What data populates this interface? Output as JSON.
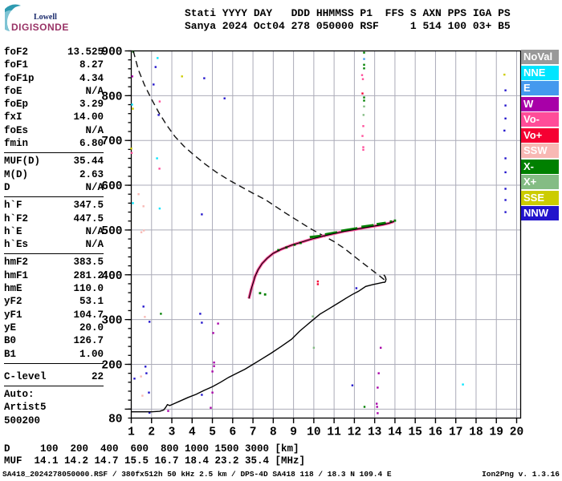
{
  "header": {
    "logo": {
      "top": "Lowell",
      "bottom": "DIGISONDE"
    },
    "line1": "Stati YYYY DAY   DDD HHMMSS P1  FFS S AXN PPS IGA PS",
    "line2": "Sanya 2024 Oct04 278 050000 RSF     1 514 100 03+ B5"
  },
  "param_panel": {
    "groups": [
      {
        "rows": [
          [
            "foF2",
            "13.525"
          ],
          [
            "foF1",
            "8.27"
          ],
          [
            "foF1p",
            "4.34"
          ],
          [
            "foE",
            "N/A"
          ],
          [
            "foEp",
            "3.29"
          ],
          [
            "fxI",
            "14.00"
          ],
          [
            "foEs",
            "N/A"
          ],
          [
            "fmin",
            "6.80"
          ]
        ]
      },
      {
        "rows": [
          [
            "MUF(D)",
            "35.44"
          ],
          [
            "M(D)",
            "2.63"
          ],
          [
            "D",
            "N/A"
          ]
        ]
      },
      {
        "rows": [
          [
            "h`F",
            "347.5"
          ],
          [
            "h`F2",
            "447.5"
          ],
          [
            "h`E",
            "N/A"
          ],
          [
            "h`Es",
            "N/A"
          ]
        ]
      },
      {
        "rows": [
          [
            "hmF2",
            "383.5"
          ],
          [
            "hmF1",
            "281.2"
          ],
          [
            "hmE",
            "110.0"
          ],
          [
            "yF2",
            "53.1"
          ],
          [
            "yF1",
            "104.7"
          ],
          [
            "yE",
            "20.0"
          ],
          [
            "B0",
            "126.7"
          ],
          [
            "B1",
            "1.00"
          ]
        ]
      },
      {
        "gap": true,
        "rows": [
          [
            "C-level",
            "22"
          ]
        ]
      },
      {
        "plain": [
          "Auto:",
          "Artist5",
          "500200"
        ]
      }
    ]
  },
  "legend": {
    "items": [
      {
        "label": "NoVal",
        "color": "#999999"
      },
      {
        "label": "NNE",
        "color": "#00E5FF"
      },
      {
        "label": "E",
        "color": "#4499EE"
      },
      {
        "label": "W",
        "color": "#A800A8"
      },
      {
        "label": "Vo-",
        "color": "#FF4D99"
      },
      {
        "label": "Vo+",
        "color": "#F50032"
      },
      {
        "label": "SSW",
        "color": "#F8B8B4"
      },
      {
        "label": "X-",
        "color": "#008000"
      },
      {
        "label": "X+",
        "color": "#84BC84"
      },
      {
        "label": "SSE",
        "color": "#CCCC00"
      },
      {
        "label": "NNW",
        "color": "#2214CC"
      }
    ]
  },
  "chart_data": {
    "type": "scatter",
    "title": "",
    "xlabel": "",
    "ylabel": "",
    "xlim": [
      1,
      20
    ],
    "ylim": [
      80,
      900
    ],
    "x_ticks": [
      1,
      2,
      3,
      4,
      5,
      6,
      7,
      8,
      9,
      10,
      11,
      12,
      13,
      14,
      15,
      16,
      17,
      18,
      19,
      20
    ],
    "y_major_ticks": [
      100,
      200,
      300,
      400,
      500,
      600,
      700,
      800,
      900
    ],
    "y_labeled_ticks": [
      900,
      800,
      700,
      600,
      500,
      400,
      300,
      200,
      80
    ],
    "y_minor_step": 20,
    "grid": true,
    "muf_table": {
      "D_km": [
        100,
        200,
        400,
        600,
        800,
        1000,
        1500,
        3000
      ],
      "MUF_MHz": [
        14.1,
        14.2,
        14.7,
        15.5,
        16.7,
        18.4,
        23.2,
        35.4
      ]
    },
    "series": {
      "o_trace": [
        [
          6.8,
          347
        ],
        [
          6.85,
          356
        ],
        [
          6.9,
          366
        ],
        [
          7.0,
          381
        ],
        [
          7.1,
          396
        ],
        [
          7.25,
          411
        ],
        [
          7.45,
          425
        ],
        [
          7.7,
          437
        ],
        [
          8.0,
          448
        ],
        [
          8.4,
          457
        ],
        [
          8.9,
          466
        ],
        [
          9.4,
          473
        ],
        [
          9.9,
          480
        ],
        [
          10.5,
          487
        ],
        [
          11.0,
          492
        ],
        [
          11.5,
          497
        ],
        [
          12.0,
          501
        ],
        [
          12.5,
          505
        ],
        [
          13.0,
          509
        ],
        [
          13.4,
          512
        ],
        [
          13.7,
          515
        ],
        [
          13.95,
          519
        ]
      ],
      "x_trace_segments": [
        [
          [
            9.8,
            484
          ],
          [
            10.35,
            487
          ]
        ],
        [
          [
            10.55,
            490
          ],
          [
            11.15,
            495
          ]
        ],
        [
          [
            11.35,
            498
          ],
          [
            12.15,
            504
          ]
        ],
        [
          [
            12.35,
            507
          ],
          [
            12.95,
            511
          ]
        ],
        [
          [
            13.1,
            513
          ],
          [
            13.55,
            516
          ]
        ]
      ],
      "x_trace_dots": [
        [
          8.25,
          455
        ],
        [
          8.65,
          461
        ],
        [
          9.05,
          467
        ],
        [
          9.35,
          471
        ],
        [
          13.8,
          519
        ],
        [
          14.0,
          521
        ],
        [
          7.35,
          359
        ],
        [
          7.6,
          356
        ]
      ],
      "profile": [
        [
          1.0,
          94
        ],
        [
          1.5,
          94
        ],
        [
          2.0,
          94
        ],
        [
          2.4,
          95
        ],
        [
          2.6,
          98
        ],
        [
          2.7,
          104
        ],
        [
          2.78,
          110
        ],
        [
          2.9,
          108
        ],
        [
          3.1,
          112
        ],
        [
          3.4,
          118
        ],
        [
          3.8,
          126
        ],
        [
          4.2,
          133
        ],
        [
          4.6,
          142
        ],
        [
          5.0,
          150
        ],
        [
          5.4,
          160
        ],
        [
          5.8,
          171
        ],
        [
          6.2,
          180
        ],
        [
          6.6,
          189
        ],
        [
          7.0,
          200
        ],
        [
          7.4,
          211
        ],
        [
          7.9,
          225
        ],
        [
          8.4,
          240
        ],
        [
          8.9,
          256
        ],
        [
          9.3,
          274
        ],
        [
          9.9,
          297
        ],
        [
          10.3,
          312
        ],
        [
          10.7,
          323
        ],
        [
          11.25,
          338
        ],
        [
          11.6,
          348
        ],
        [
          11.9,
          356
        ],
        [
          12.2,
          363
        ],
        [
          12.56,
          374
        ],
        [
          12.9,
          378
        ],
        [
          13.2,
          381
        ],
        [
          13.4,
          383
        ],
        [
          13.525,
          383.5
        ]
      ],
      "profile_hook": [
        [
          13.525,
          383.5
        ],
        [
          13.56,
          390
        ],
        [
          13.52,
          396
        ],
        [
          13.45,
          400
        ]
      ],
      "transmission_curve": [
        [
          1.1,
          900
        ],
        [
          1.35,
          858
        ],
        [
          1.65,
          824
        ],
        [
          2.0,
          792
        ],
        [
          2.35,
          763
        ],
        [
          2.75,
          734
        ],
        [
          3.15,
          709
        ],
        [
          3.6,
          687
        ],
        [
          4.1,
          667
        ],
        [
          4.65,
          647
        ],
        [
          5.2,
          629
        ],
        [
          5.8,
          612
        ],
        [
          6.4,
          597
        ],
        [
          7.0,
          582
        ],
        [
          7.6,
          568
        ],
        [
          8.1,
          553
        ],
        [
          8.6,
          538
        ],
        [
          9.2,
          521
        ],
        [
          9.8,
          504
        ],
        [
          10.4,
          489
        ],
        [
          11.0,
          474
        ],
        [
          11.5,
          459
        ],
        [
          12.0,
          441
        ],
        [
          12.45,
          425
        ],
        [
          12.85,
          411
        ],
        [
          13.2,
          399
        ],
        [
          13.45,
          390
        ],
        [
          13.53,
          384
        ]
      ],
      "noise_points": [
        [
          1.1,
          898,
          "X-"
        ],
        [
          2.3,
          884,
          "NNE"
        ],
        [
          2.2,
          864,
          "NNW"
        ],
        [
          1.05,
          843,
          "W"
        ],
        [
          3.5,
          843,
          "SSE"
        ],
        [
          4.6,
          839,
          "NNW"
        ],
        [
          2.1,
          825,
          "NNW"
        ],
        [
          5.6,
          794,
          "NNW"
        ],
        [
          2.4,
          787,
          "Vo-"
        ],
        [
          1.04,
          780,
          "NNE"
        ],
        [
          1.08,
          771,
          "SSE"
        ],
        [
          2.35,
          757,
          "NNW"
        ],
        [
          1.0,
          682,
          "SSE"
        ],
        [
          1.02,
          672,
          "Vo-"
        ],
        [
          2.27,
          660,
          "NNE"
        ],
        [
          2.39,
          637,
          "Vo-"
        ],
        [
          1.36,
          580,
          "SSW"
        ],
        [
          1.08,
          560,
          "NNE"
        ],
        [
          1.6,
          553,
          "SSW"
        ],
        [
          2.4,
          548,
          "NNE"
        ],
        [
          4.48,
          535,
          "NNW"
        ],
        [
          1.5,
          495,
          "SSW"
        ],
        [
          1.62,
          499,
          "SSW"
        ],
        [
          12.48,
          896,
          "X-"
        ],
        [
          12.48,
          882,
          "E"
        ],
        [
          12.48,
          869,
          "X-"
        ],
        [
          12.48,
          861,
          "X-"
        ],
        [
          12.38,
          846,
          "Vo-"
        ],
        [
          12.42,
          837,
          "Vo-"
        ],
        [
          12.4,
          805,
          "Vo+"
        ],
        [
          12.48,
          796,
          "X-"
        ],
        [
          12.48,
          789,
          "X-"
        ],
        [
          12.48,
          776,
          "X+"
        ],
        [
          12.45,
          757,
          "X+"
        ],
        [
          12.44,
          732,
          "Vo-"
        ],
        [
          12.4,
          710,
          "Vo-"
        ],
        [
          12.44,
          685,
          "Vo-"
        ],
        [
          12.44,
          679,
          "Vo-"
        ],
        [
          19.4,
          847,
          "SSE"
        ],
        [
          19.45,
          812,
          "NNW"
        ],
        [
          19.45,
          778,
          "NNW"
        ],
        [
          19.45,
          749,
          "NNW"
        ],
        [
          19.4,
          722,
          "NNW"
        ],
        [
          19.45,
          660,
          "NNW"
        ],
        [
          19.45,
          629,
          "NNW"
        ],
        [
          19.45,
          592,
          "NNW"
        ],
        [
          19.45,
          567,
          "NNW"
        ],
        [
          19.45,
          540,
          "NNW"
        ],
        [
          10.2,
          385,
          "Vo+"
        ],
        [
          10.2,
          379,
          "Vo+"
        ],
        [
          12.1,
          370,
          "NNW"
        ],
        [
          9.95,
          307,
          "X+"
        ],
        [
          10.0,
          237,
          "X+"
        ],
        [
          13.3,
          237,
          "W"
        ],
        [
          13.2,
          180,
          "W"
        ],
        [
          11.9,
          153,
          "NNW"
        ],
        [
          13.15,
          148,
          "W"
        ],
        [
          17.35,
          155,
          "NNE"
        ],
        [
          12.5,
          105,
          "X-"
        ],
        [
          13.1,
          112,
          "W"
        ],
        [
          13.12,
          105,
          "W"
        ],
        [
          13.15,
          91,
          "W"
        ],
        [
          1.6,
          329,
          "NNW"
        ],
        [
          2.46,
          313,
          "X-"
        ],
        [
          1.67,
          306,
          "SSW"
        ],
        [
          1.9,
          295,
          "NNW"
        ],
        [
          4.4,
          313,
          "NNW"
        ],
        [
          4.48,
          293,
          "NNW"
        ],
        [
          5.28,
          291,
          "W"
        ],
        [
          5.04,
          270,
          "W"
        ],
        [
          5.08,
          204,
          "W"
        ],
        [
          5.08,
          196,
          "W"
        ],
        [
          1.7,
          195,
          "NNW"
        ],
        [
          1.75,
          180,
          "NNW"
        ],
        [
          1.48,
          173,
          "SSW"
        ],
        [
          1.16,
          168,
          "NNW"
        ],
        [
          5.0,
          184,
          "W"
        ],
        [
          1.87,
          137,
          "NNW"
        ],
        [
          1.55,
          130,
          "SSW"
        ],
        [
          4.48,
          132,
          "NNW"
        ],
        [
          5.0,
          137,
          "W"
        ],
        [
          4.92,
          103,
          "W"
        ],
        [
          2.82,
          96,
          "W"
        ],
        [
          1.9,
          92,
          "NNW"
        ]
      ]
    }
  },
  "dist_muf_table": {
    "d_row": "D     100  200  400  600  800 1000 1500 3000 [km]",
    "muf_row": "MUF  14.1 14.2 14.7 15.5 16.7 18.4 23.2 35.4 [MHz]"
  },
  "footer": {
    "left": "SA418_2024278050000.RSF / 380fx512h 50 kHz 2.5 km / DPS-4D SA418 118 / 18.3 N 109.4 E",
    "right": "Ion2Png v. 1.3.16"
  }
}
